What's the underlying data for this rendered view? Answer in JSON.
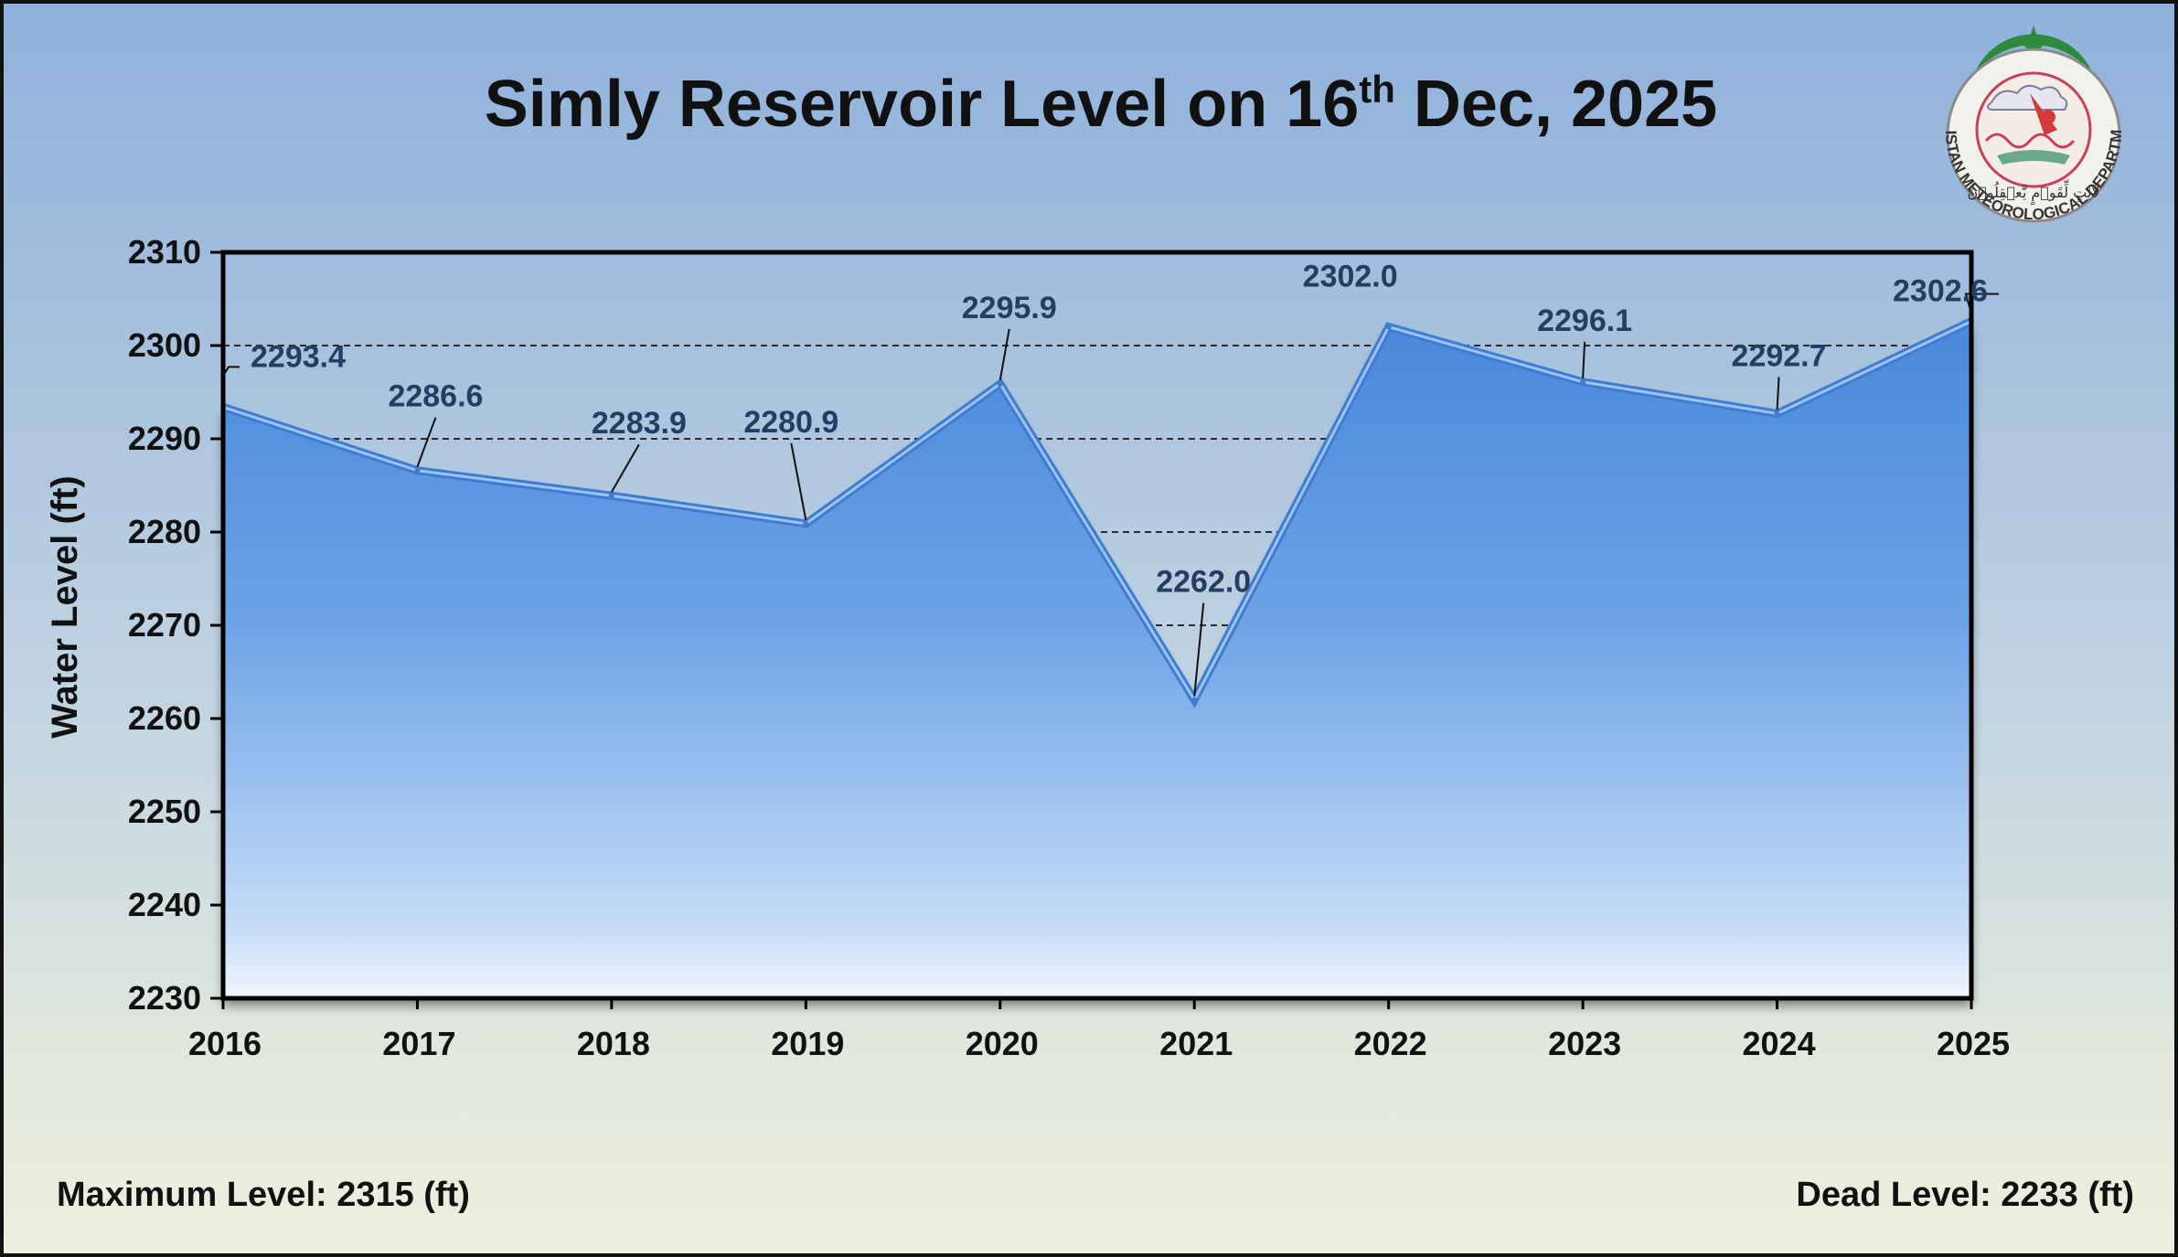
{
  "chart_data": {
    "type": "area",
    "title_main": "Simly Reservoir Level on 16",
    "title_sup": "th",
    "title_tail": " Dec, 2025",
    "ylabel": "Water Level (ft)",
    "xlabel": "",
    "categories": [
      "2016",
      "2017",
      "2018",
      "2019",
      "2020",
      "2021",
      "2022",
      "2023",
      "2024",
      "2025"
    ],
    "series": [
      {
        "values": [
          2293.4,
          2286.6,
          2283.9,
          2280.9,
          2295.9,
          2262.0,
          2302.0,
          2296.1,
          2292.7,
          2302.6
        ]
      }
    ],
    "data_labels": [
      "2293.4",
      "2286.6",
      "2283.9",
      "2280.9",
      "2295.9",
      "2262.0",
      "2302.0",
      "2296.1",
      "2292.7",
      "2302.6"
    ],
    "ylim": [
      2230,
      2310
    ],
    "yticks": [
      "2230",
      "2240",
      "2250",
      "2260",
      "2270",
      "2280",
      "2290",
      "2300",
      "2310"
    ],
    "grid": "dashed horizontal",
    "fill_color": "#5b96e0",
    "line_color": "#4a86d8"
  },
  "footer": {
    "max_level": "Maximum Level: 2315 (ft)",
    "dead_level": "Dead Level: 2233 (ft)"
  },
  "logo": {
    "ring_text": "PAKISTAN METEOROLOGICAL DEPARTMENT",
    "motto": "لَآیٰتٍ لِّقَوۡمٍ یَّعۡقِلُوۡنَ"
  }
}
